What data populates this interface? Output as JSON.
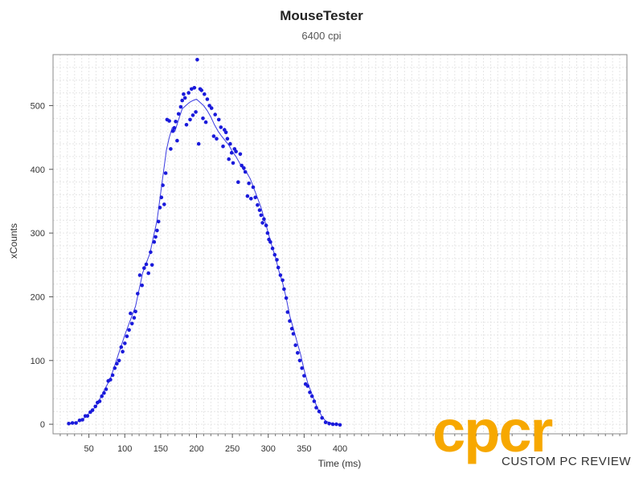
{
  "chart_data": {
    "type": "scatter",
    "title": "MouseTester",
    "subtitle": "6400 cpi",
    "xlabel": "Time (ms)",
    "ylabel": "xCounts",
    "xlim": [
      0,
      800
    ],
    "ylim": [
      -15,
      580
    ],
    "x_ticks": [
      50,
      100,
      150,
      200,
      250,
      300,
      350,
      400
    ],
    "y_ticks": [
      0,
      100,
      200,
      300,
      400,
      500
    ],
    "grid": true,
    "colors": {
      "points": "#1a1adb",
      "line": "#3a3ae0",
      "grid": "#e6e6e6",
      "frame": "#888888"
    },
    "series": [
      {
        "kind": "scatter",
        "points": [
          [
            22,
            1
          ],
          [
            27,
            2
          ],
          [
            32,
            2
          ],
          [
            37,
            6
          ],
          [
            41,
            7
          ],
          [
            45,
            13
          ],
          [
            48,
            13
          ],
          [
            52,
            19
          ],
          [
            55,
            22
          ],
          [
            59,
            28
          ],
          [
            62,
            34
          ],
          [
            65,
            36
          ],
          [
            68,
            44
          ],
          [
            71,
            49
          ],
          [
            74,
            55
          ],
          [
            77,
            68
          ],
          [
            80,
            70
          ],
          [
            83,
            77
          ],
          [
            86,
            88
          ],
          [
            89,
            95
          ],
          [
            92,
            100
          ],
          [
            95,
            121
          ],
          [
            97,
            114
          ],
          [
            100,
            127
          ],
          [
            103,
            138
          ],
          [
            106,
            148
          ],
          [
            108,
            174
          ],
          [
            110,
            158
          ],
          [
            113,
            167
          ],
          [
            115,
            177
          ],
          [
            118,
            205
          ],
          [
            121,
            234
          ],
          [
            124,
            218
          ],
          [
            127,
            245
          ],
          [
            130,
            251
          ],
          [
            133,
            237
          ],
          [
            136,
            270
          ],
          [
            138,
            250
          ],
          [
            141,
            286
          ],
          [
            143,
            294
          ],
          [
            145,
            304
          ],
          [
            147,
            318
          ],
          [
            149,
            340
          ],
          [
            151,
            356
          ],
          [
            153,
            375
          ],
          [
            155,
            345
          ],
          [
            157,
            394
          ],
          [
            159,
            478
          ],
          [
            162,
            476
          ],
          [
            164,
            432
          ],
          [
            167,
            460
          ],
          [
            169,
            465
          ],
          [
            171,
            475
          ],
          [
            173,
            445
          ],
          [
            175,
            487
          ],
          [
            178,
            498
          ],
          [
            180,
            508
          ],
          [
            182,
            518
          ],
          [
            184,
            512
          ],
          [
            186,
            470
          ],
          [
            189,
            520
          ],
          [
            191,
            478
          ],
          [
            193,
            526
          ],
          [
            195,
            485
          ],
          [
            197,
            528
          ],
          [
            199,
            490
          ],
          [
            201,
            572
          ],
          [
            203,
            440
          ],
          [
            205,
            526
          ],
          [
            207,
            524
          ],
          [
            209,
            480
          ],
          [
            211,
            518
          ],
          [
            213,
            474
          ],
          [
            215,
            510
          ],
          [
            218,
            500
          ],
          [
            221,
            496
          ],
          [
            224,
            452
          ],
          [
            226,
            486
          ],
          [
            228,
            448
          ],
          [
            231,
            478
          ],
          [
            234,
            466
          ],
          [
            237,
            436
          ],
          [
            239,
            462
          ],
          [
            241,
            458
          ],
          [
            243,
            448
          ],
          [
            245,
            416
          ],
          [
            247,
            440
          ],
          [
            249,
            426
          ],
          [
            251,
            410
          ],
          [
            253,
            432
          ],
          [
            255,
            428
          ],
          [
            258,
            380
          ],
          [
            261,
            424
          ],
          [
            263,
            406
          ],
          [
            266,
            402
          ],
          [
            268,
            396
          ],
          [
            271,
            358
          ],
          [
            273,
            378
          ],
          [
            276,
            354
          ],
          [
            279,
            372
          ],
          [
            282,
            356
          ],
          [
            285,
            344
          ],
          [
            288,
            336
          ],
          [
            290,
            328
          ],
          [
            292,
            316
          ],
          [
            294,
            322
          ],
          [
            297,
            312
          ],
          [
            299,
            300
          ],
          [
            301,
            290
          ],
          [
            303,
            286
          ],
          [
            306,
            276
          ],
          [
            309,
            266
          ],
          [
            312,
            258
          ],
          [
            314,
            246
          ],
          [
            317,
            234
          ],
          [
            320,
            226
          ],
          [
            322,
            212
          ],
          [
            325,
            198
          ],
          [
            327,
            176
          ],
          [
            330,
            162
          ],
          [
            333,
            150
          ],
          [
            335,
            142
          ],
          [
            338,
            124
          ],
          [
            341,
            112
          ],
          [
            344,
            100
          ],
          [
            347,
            88
          ],
          [
            350,
            76
          ],
          [
            352,
            63
          ],
          [
            355,
            60
          ],
          [
            358,
            50
          ],
          [
            361,
            44
          ],
          [
            364,
            36
          ],
          [
            367,
            26
          ],
          [
            371,
            20
          ],
          [
            375,
            10
          ],
          [
            380,
            3
          ],
          [
            385,
            1
          ],
          [
            390,
            0
          ],
          [
            395,
            0
          ],
          [
            400,
            -1
          ]
        ]
      },
      {
        "kind": "line",
        "points": [
          [
            22,
            0
          ],
          [
            40,
            6
          ],
          [
            60,
            28
          ],
          [
            80,
            72
          ],
          [
            100,
            140
          ],
          [
            115,
            185
          ],
          [
            125,
            238
          ],
          [
            135,
            268
          ],
          [
            145,
            320
          ],
          [
            152,
            380
          ],
          [
            158,
            430
          ],
          [
            162,
            450
          ],
          [
            166,
            465
          ],
          [
            170,
            460
          ],
          [
            175,
            478
          ],
          [
            180,
            495
          ],
          [
            185,
            500
          ],
          [
            190,
            505
          ],
          [
            195,
            508
          ],
          [
            200,
            510
          ],
          [
            205,
            505
          ],
          [
            210,
            500
          ],
          [
            215,
            492
          ],
          [
            220,
            482
          ],
          [
            225,
            470
          ],
          [
            230,
            460
          ],
          [
            235,
            452
          ],
          [
            240,
            445
          ],
          [
            245,
            438
          ],
          [
            250,
            428
          ],
          [
            255,
            420
          ],
          [
            260,
            410
          ],
          [
            265,
            400
          ],
          [
            270,
            395
          ],
          [
            275,
            385
          ],
          [
            280,
            370
          ],
          [
            285,
            355
          ],
          [
            290,
            340
          ],
          [
            295,
            320
          ],
          [
            300,
            300
          ],
          [
            305,
            280
          ],
          [
            310,
            262
          ],
          [
            315,
            240
          ],
          [
            320,
            222
          ],
          [
            325,
            198
          ],
          [
            330,
            170
          ],
          [
            335,
            150
          ],
          [
            340,
            130
          ],
          [
            345,
            110
          ],
          [
            350,
            85
          ],
          [
            355,
            65
          ],
          [
            360,
            50
          ],
          [
            365,
            35
          ],
          [
            370,
            22
          ],
          [
            375,
            12
          ],
          [
            380,
            5
          ],
          [
            390,
            1
          ],
          [
            400,
            0
          ]
        ]
      }
    ]
  },
  "watermark": {
    "logo_letters": "cpcr",
    "logo_color": "#f7a800",
    "caption": "CUSTOM PC REVIEW"
  }
}
